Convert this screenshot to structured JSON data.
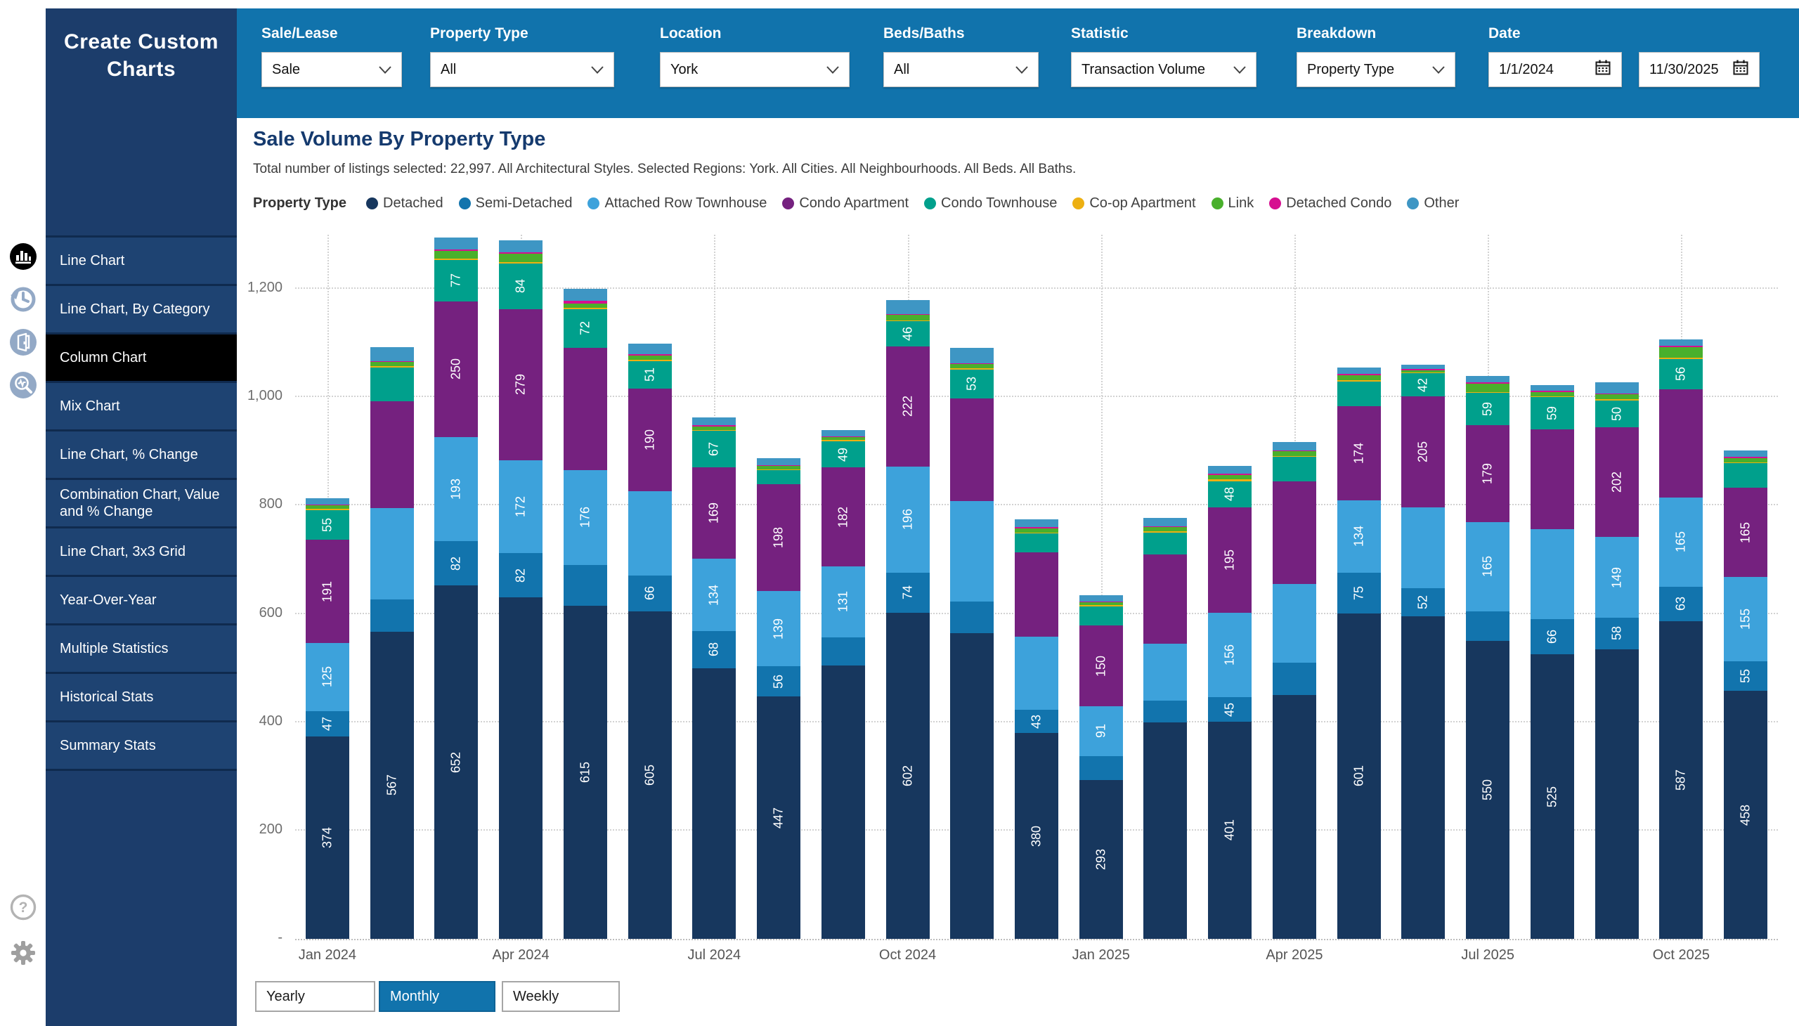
{
  "colors": {
    "header_bar": "#1173ac",
    "sidebar": "#1c3d6b",
    "active_menu_item": "#000000",
    "title_text": "#153a6e"
  },
  "sidebar": {
    "title": "Create Custom Charts",
    "items": [
      {
        "label": "Line Chart",
        "active": false
      },
      {
        "label": "Line Chart, By Category",
        "active": false
      },
      {
        "label": "Column Chart",
        "active": true
      },
      {
        "label": "Mix Chart",
        "active": false
      },
      {
        "label": "Line Chart, % Change",
        "active": false
      },
      {
        "label": "Combination Chart, Value and % Change",
        "active": false
      },
      {
        "label": "Line Chart, 3x3 Grid",
        "active": false
      },
      {
        "label": "Year-Over-Year",
        "active": false
      },
      {
        "label": "Multiple Statistics",
        "active": false
      },
      {
        "label": "Historical Stats",
        "active": false
      },
      {
        "label": "Summary Stats",
        "active": false
      }
    ]
  },
  "rail": {
    "icons": [
      {
        "name": "column-chart-icon",
        "active": true
      },
      {
        "name": "history-icon",
        "active": false
      },
      {
        "name": "door-icon",
        "active": false
      },
      {
        "name": "search-stats-icon",
        "active": false
      }
    ],
    "bottom_icons": [
      {
        "name": "help-icon"
      },
      {
        "name": "settings-icon"
      }
    ]
  },
  "filters": [
    {
      "label": "Sale/Lease",
      "type": "select",
      "value": "Sale"
    },
    {
      "label": "Property Type",
      "type": "select",
      "value": "All"
    },
    {
      "label": "Location",
      "type": "select",
      "value": "York"
    },
    {
      "label": "Beds/Baths",
      "type": "select",
      "value": "All"
    },
    {
      "label": "Statistic",
      "type": "select",
      "value": "Transaction Volume"
    },
    {
      "label": "Breakdown",
      "type": "select",
      "value": "Property Type"
    },
    {
      "label": "Date",
      "type": "daterange",
      "from": "1/1/2024",
      "to": "11/30/2025"
    }
  ],
  "period_buttons": {
    "options": [
      "Yearly",
      "Monthly",
      "Weekly"
    ],
    "active": "Monthly"
  },
  "chart_data": {
    "type": "stacked-bar",
    "title": "Sale Volume By Property Type",
    "subtitle": "Total number of listings selected: 22,997. All Architectural Styles. Selected Regions: York. All Cities. All Neighbourhoods. All Beds. All Baths.",
    "legend_title": "Property Type",
    "legend_position": "top",
    "grid": "dotted",
    "ylim": [
      0,
      1300
    ],
    "yticks": [
      {
        "v": 0,
        "label": "-"
      },
      {
        "v": 200,
        "label": "200"
      },
      {
        "v": 400,
        "label": "400"
      },
      {
        "v": 600,
        "label": "600"
      },
      {
        "v": 800,
        "label": "800"
      },
      {
        "v": 1000,
        "label": "1,000"
      },
      {
        "v": 1200,
        "label": "1,200"
      }
    ],
    "categories": [
      "Jan 2024",
      "Feb 2024",
      "Mar 2024",
      "Apr 2024",
      "May 2024",
      "Jun 2024",
      "Jul 2024",
      "Aug 2024",
      "Sep 2024",
      "Oct 2024",
      "Nov 2024",
      "Dec 2024",
      "Jan 2025",
      "Feb 2025",
      "Mar 2025",
      "Apr 2025",
      "May 2025",
      "Jun 2025",
      "Jul 2025",
      "Aug 2025",
      "Sep 2025",
      "Oct 2025",
      "Nov 2025"
    ],
    "x_tick_indices": [
      0,
      3,
      6,
      9,
      12,
      15,
      18,
      21
    ],
    "x_tick_labels": [
      "Jan 2024",
      "Apr 2024",
      "Jul 2024",
      "Oct 2024",
      "Jan 2025",
      "Apr 2025",
      "Jul 2025",
      "Oct 2025"
    ],
    "series": [
      {
        "name": "Detached",
        "color": "#17375e",
        "values": [
          374,
          567,
          652,
          630,
          615,
          605,
          500,
          447,
          505,
          602,
          565,
          380,
          293,
          400,
          401,
          450,
          601,
          595,
          550,
          525,
          535,
          587,
          458
        ],
        "show": [
          1,
          1,
          1,
          0,
          1,
          1,
          0,
          1,
          0,
          1,
          0,
          1,
          1,
          0,
          1,
          0,
          1,
          0,
          1,
          1,
          0,
          1,
          1
        ]
      },
      {
        "name": "Semi-Detached",
        "color": "#1274ad",
        "values": [
          47,
          60,
          82,
          82,
          75,
          66,
          68,
          56,
          52,
          74,
          58,
          43,
          45,
          40,
          45,
          60,
          75,
          52,
          55,
          66,
          58,
          63,
          55
        ],
        "show": [
          1,
          0,
          1,
          1,
          0,
          1,
          1,
          1,
          0,
          1,
          0,
          1,
          0,
          0,
          1,
          0,
          1,
          1,
          0,
          1,
          1,
          1,
          1
        ]
      },
      {
        "name": "Attached Row Townhouse",
        "color": "#3da2db",
        "values": [
          125,
          168,
          193,
          172,
          176,
          155,
          134,
          139,
          131,
          196,
          185,
          135,
          91,
          105,
          156,
          145,
          134,
          150,
          165,
          165,
          149,
          165,
          155
        ],
        "show": [
          1,
          0,
          1,
          1,
          1,
          0,
          1,
          1,
          1,
          1,
          0,
          0,
          1,
          0,
          1,
          0,
          1,
          0,
          1,
          0,
          1,
          1,
          1
        ]
      },
      {
        "name": "Condo Apartment",
        "color": "#75217f",
        "values": [
          191,
          198,
          250,
          279,
          225,
          190,
          169,
          198,
          182,
          222,
          190,
          155,
          150,
          165,
          195,
          190,
          174,
          205,
          179,
          185,
          202,
          200,
          165
        ],
        "show": [
          1,
          0,
          1,
          1,
          0,
          1,
          1,
          1,
          1,
          1,
          0,
          0,
          1,
          0,
          1,
          0,
          1,
          1,
          1,
          0,
          1,
          0,
          1
        ]
      },
      {
        "name": "Condo Townhouse",
        "color": "#00a08c",
        "values": [
          55,
          62,
          77,
          84,
          72,
          51,
          67,
          25,
          49,
          46,
          53,
          35,
          35,
          40,
          48,
          45,
          45,
          42,
          59,
          59,
          50,
          56,
          45
        ],
        "show": [
          1,
          0,
          1,
          1,
          1,
          1,
          1,
          0,
          1,
          1,
          1,
          0,
          0,
          0,
          1,
          0,
          0,
          1,
          1,
          1,
          1,
          1,
          0
        ]
      },
      {
        "name": "Co-op Apartment",
        "color": "#edb012",
        "values": [
          2,
          2,
          2,
          2,
          2,
          2,
          2,
          2,
          2,
          2,
          2,
          2,
          2,
          2,
          4,
          2,
          2,
          2,
          2,
          2,
          3,
          2,
          2
        ],
        "show": [
          0,
          0,
          0,
          0,
          0,
          0,
          0,
          0,
          0,
          0,
          0,
          0,
          0,
          0,
          0,
          0,
          0,
          0,
          0,
          0,
          0,
          0,
          0
        ]
      },
      {
        "name": "Link",
        "color": "#49b02c",
        "values": [
          6,
          8,
          14,
          16,
          8,
          8,
          6,
          6,
          5,
          10,
          8,
          8,
          5,
          8,
          8,
          8,
          10,
          4,
          15,
          8,
          8,
          20,
          8
        ],
        "show": [
          0,
          0,
          0,
          0,
          0,
          0,
          0,
          0,
          0,
          0,
          0,
          0,
          0,
          0,
          0,
          0,
          0,
          0,
          0,
          0,
          0,
          0,
          0
        ]
      },
      {
        "name": "Detached Condo",
        "color": "#d60f90",
        "values": [
          2,
          2,
          3,
          3,
          5,
          2,
          2,
          2,
          2,
          2,
          2,
          2,
          2,
          2,
          2,
          2,
          2,
          2,
          2,
          2,
          2,
          2,
          2
        ],
        "show": [
          0,
          0,
          0,
          0,
          0,
          0,
          0,
          0,
          0,
          0,
          0,
          0,
          0,
          0,
          0,
          0,
          0,
          0,
          0,
          0,
          0,
          0,
          0
        ]
      },
      {
        "name": "Other",
        "color": "#3e96c4",
        "values": [
          12,
          25,
          22,
          22,
          22,
          20,
          15,
          12,
          12,
          25,
          28,
          15,
          12,
          15,
          14,
          15,
          12,
          8,
          12,
          10,
          20,
          12,
          12
        ],
        "show": [
          0,
          0,
          0,
          0,
          0,
          0,
          0,
          0,
          0,
          0,
          0,
          0,
          0,
          0,
          0,
          0,
          0,
          0,
          0,
          0,
          0,
          0,
          0
        ]
      }
    ]
  }
}
